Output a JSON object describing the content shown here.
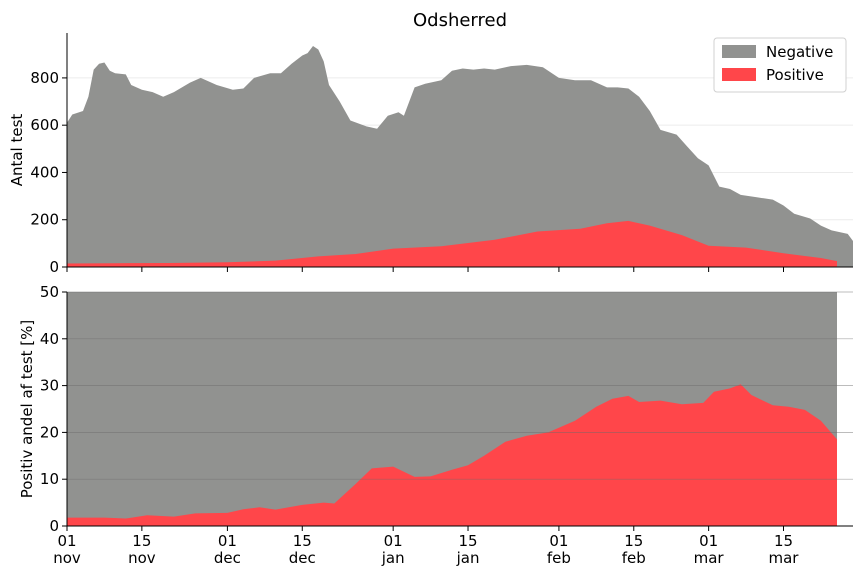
{
  "chart_data": [
    {
      "type": "area",
      "stacked": true,
      "title": "Odsherred",
      "xlabel": "",
      "ylabel": "Antal test",
      "ylim": [
        0,
        990
      ],
      "yticks": [
        0,
        200,
        400,
        600,
        800
      ],
      "x_date_range": [
        "2020-11-01",
        "2021-03-22"
      ],
      "x_ticks": [
        {
          "date": "2020-11-01",
          "day": "01",
          "month": "nov"
        },
        {
          "date": "2020-11-15",
          "day": "15",
          "month": "nov"
        },
        {
          "date": "2020-12-01",
          "day": "01",
          "month": "dec"
        },
        {
          "date": "2020-12-15",
          "day": "15",
          "month": "dec"
        },
        {
          "date": "2021-01-01",
          "day": "01",
          "month": "jan"
        },
        {
          "date": "2021-01-15",
          "day": "15",
          "month": "jan"
        },
        {
          "date": "2021-02-01",
          "day": "01",
          "month": "feb"
        },
        {
          "date": "2021-02-15",
          "day": "15",
          "month": "feb"
        },
        {
          "date": "2021-03-01",
          "day": "01",
          "month": "mar"
        },
        {
          "date": "2021-03-15",
          "day": "15",
          "month": "mar"
        }
      ],
      "grid": "y",
      "legend_position": "top-right",
      "series": [
        {
          "name": "Positive",
          "color": "#ff464a",
          "points": [
            [
              "2020-11-01",
              15
            ],
            [
              "2020-11-10",
              16
            ],
            [
              "2020-11-20",
              17
            ],
            [
              "2020-12-01",
              20
            ],
            [
              "2020-12-10",
              27
            ],
            [
              "2020-12-18",
              45
            ],
            [
              "2020-12-25",
              55
            ],
            [
              "2021-01-01",
              78
            ],
            [
              "2021-01-10",
              88
            ],
            [
              "2021-01-20",
              115
            ],
            [
              "2021-01-28",
              150
            ],
            [
              "2021-02-05",
              162
            ],
            [
              "2021-02-10",
              185
            ],
            [
              "2021-02-14",
              195
            ],
            [
              "2021-02-18",
              175
            ],
            [
              "2021-02-24",
              135
            ],
            [
              "2021-03-01",
              90
            ],
            [
              "2021-03-08",
              82
            ],
            [
              "2021-03-15",
              58
            ],
            [
              "2021-03-22",
              38
            ],
            [
              "2021-03-25",
              25
            ]
          ]
        },
        {
          "name": "Negative",
          "color": "#919290",
          "total_points": [
            [
              "2020-11-01",
              610
            ],
            [
              "2020-11-02",
              645
            ],
            [
              "2020-11-04",
              660
            ],
            [
              "2020-11-05",
              720
            ],
            [
              "2020-11-06",
              835
            ],
            [
              "2020-11-07",
              860
            ],
            [
              "2020-11-08",
              865
            ],
            [
              "2020-11-09",
              830
            ],
            [
              "2020-11-10",
              820
            ],
            [
              "2020-11-12",
              815
            ],
            [
              "2020-11-13",
              770
            ],
            [
              "2020-11-15",
              750
            ],
            [
              "2020-11-17",
              740
            ],
            [
              "2020-11-19",
              720
            ],
            [
              "2020-11-21",
              740
            ],
            [
              "2020-11-24",
              780
            ],
            [
              "2020-11-26",
              800
            ],
            [
              "2020-11-29",
              770
            ],
            [
              "2020-12-02",
              750
            ],
            [
              "2020-12-04",
              755
            ],
            [
              "2020-12-06",
              800
            ],
            [
              "2020-12-09",
              820
            ],
            [
              "2020-12-11",
              820
            ],
            [
              "2020-12-13",
              860
            ],
            [
              "2020-12-15",
              895
            ],
            [
              "2020-12-16",
              905
            ],
            [
              "2020-12-17",
              935
            ],
            [
              "2020-12-18",
              920
            ],
            [
              "2020-12-19",
              870
            ],
            [
              "2020-12-20",
              770
            ],
            [
              "2020-12-22",
              700
            ],
            [
              "2020-12-24",
              620
            ],
            [
              "2020-12-27",
              595
            ],
            [
              "2020-12-29",
              585
            ],
            [
              "2020-12-31",
              640
            ],
            [
              "2021-01-02",
              655
            ],
            [
              "2021-01-03",
              640
            ],
            [
              "2021-01-05",
              760
            ],
            [
              "2021-01-07",
              775
            ],
            [
              "2021-01-10",
              790
            ],
            [
              "2021-01-12",
              830
            ],
            [
              "2021-01-14",
              840
            ],
            [
              "2021-01-16",
              835
            ],
            [
              "2021-01-18",
              840
            ],
            [
              "2021-01-20",
              835
            ],
            [
              "2021-01-23",
              850
            ],
            [
              "2021-01-26",
              855
            ],
            [
              "2021-01-29",
              845
            ],
            [
              "2021-02-01",
              800
            ],
            [
              "2021-02-04",
              790
            ],
            [
              "2021-02-07",
              790
            ],
            [
              "2021-02-10",
              760
            ],
            [
              "2021-02-12",
              760
            ],
            [
              "2021-02-14",
              755
            ],
            [
              "2021-02-16",
              720
            ],
            [
              "2021-02-18",
              660
            ],
            [
              "2021-02-20",
              580
            ],
            [
              "2021-02-23",
              560
            ],
            [
              "2021-02-25",
              510
            ],
            [
              "2021-02-27",
              460
            ],
            [
              "2021-03-01",
              430
            ],
            [
              "2021-03-03",
              340
            ],
            [
              "2021-03-05",
              330
            ],
            [
              "2021-03-07",
              305
            ],
            [
              "2021-03-10",
              295
            ],
            [
              "2021-03-13",
              285
            ],
            [
              "2021-03-15",
              260
            ],
            [
              "2021-03-17",
              225
            ],
            [
              "2021-03-20",
              205
            ],
            [
              "2021-03-22",
              175
            ],
            [
              "2021-03-24",
              155
            ],
            [
              "2021-03-27",
              140
            ],
            [
              "2021-03-28",
              110
            ]
          ]
        }
      ]
    },
    {
      "type": "area",
      "stacked": true,
      "title": "",
      "xlabel": "",
      "ylabel": "Positiv andel af test [%]",
      "ylim": [
        0,
        50
      ],
      "yticks": [
        0,
        10,
        20,
        30,
        40,
        50
      ],
      "grid": "y",
      "series": [
        {
          "name": "Positive",
          "color": "#ff464a",
          "points": [
            [
              "2020-11-01",
              1.8
            ],
            [
              "2020-11-08",
              1.8
            ],
            [
              "2020-11-12",
              1.6
            ],
            [
              "2020-11-16",
              2.3
            ],
            [
              "2020-11-21",
              2.0
            ],
            [
              "2020-11-25",
              2.7
            ],
            [
              "2020-12-01",
              2.8
            ],
            [
              "2020-12-04",
              3.6
            ],
            [
              "2020-12-07",
              4.0
            ],
            [
              "2020-12-10",
              3.5
            ],
            [
              "2020-12-15",
              4.5
            ],
            [
              "2020-12-19",
              5.0
            ],
            [
              "2020-12-21",
              4.8
            ],
            [
              "2020-12-25",
              9.0
            ],
            [
              "2020-12-28",
              12.3
            ],
            [
              "2021-01-01",
              12.7
            ],
            [
              "2021-01-05",
              10.5
            ],
            [
              "2021-01-08",
              10.6
            ],
            [
              "2021-01-12",
              12.0
            ],
            [
              "2021-01-15",
              13.0
            ],
            [
              "2021-01-18",
              15.0
            ],
            [
              "2021-01-22",
              18.0
            ],
            [
              "2021-01-26",
              19.3
            ],
            [
              "2021-01-30",
              20.0
            ],
            [
              "2021-02-04",
              22.5
            ],
            [
              "2021-02-08",
              25.5
            ],
            [
              "2021-02-11",
              27.2
            ],
            [
              "2021-02-14",
              27.8
            ],
            [
              "2021-02-16",
              26.5
            ],
            [
              "2021-02-20",
              26.8
            ],
            [
              "2021-02-24",
              26.0
            ],
            [
              "2021-02-28",
              26.3
            ],
            [
              "2021-03-02",
              28.7
            ],
            [
              "2021-03-05",
              29.4
            ],
            [
              "2021-03-07",
              30.3
            ],
            [
              "2021-03-09",
              28.0
            ],
            [
              "2021-03-13",
              25.8
            ],
            [
              "2021-03-16",
              25.5
            ],
            [
              "2021-03-19",
              24.8
            ],
            [
              "2021-03-22",
              22.5
            ],
            [
              "2021-03-25",
              18.5
            ]
          ]
        },
        {
          "name": "Negative",
          "color": "#919290",
          "fills_to": 50
        }
      ]
    }
  ],
  "legend": [
    {
      "label": "Negative",
      "color": "#919290"
    },
    {
      "label": "Positive",
      "color": "#ff464a"
    }
  ]
}
